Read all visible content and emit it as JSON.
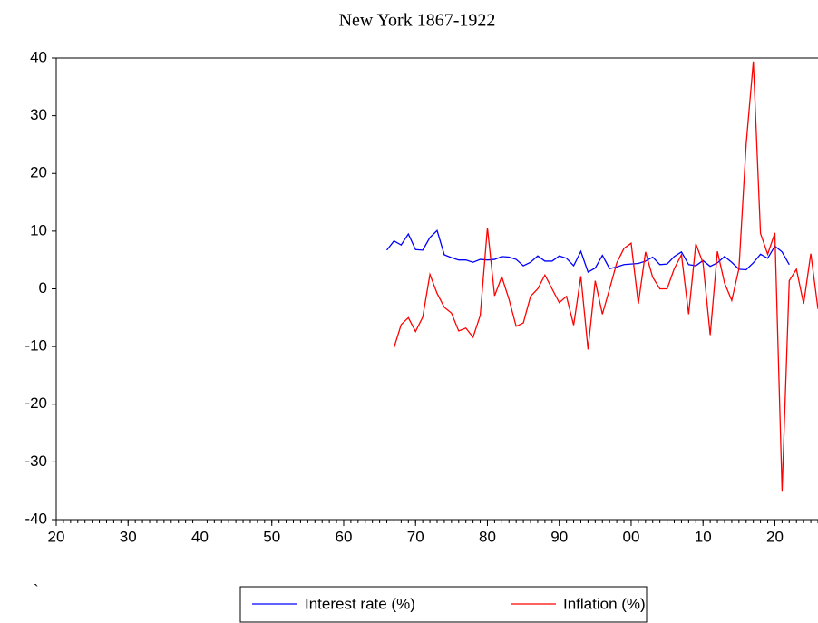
{
  "chart_data": {
    "type": "line",
    "title": "New York 1867-1922",
    "annotation": "`",
    "xlim": [
      1820,
      1926
    ],
    "ylim": [
      -40,
      40
    ],
    "xticks": [
      {
        "value": 1820,
        "label": "20"
      },
      {
        "value": 1830,
        "label": "30"
      },
      {
        "value": 1840,
        "label": "40"
      },
      {
        "value": 1850,
        "label": "50"
      },
      {
        "value": 1860,
        "label": "60"
      },
      {
        "value": 1870,
        "label": "70"
      },
      {
        "value": 1880,
        "label": "80"
      },
      {
        "value": 1890,
        "label": "90"
      },
      {
        "value": 1900,
        "label": "00"
      },
      {
        "value": 1910,
        "label": "10"
      },
      {
        "value": 1920,
        "label": "20"
      }
    ],
    "yticks": [
      -40,
      -30,
      -20,
      -10,
      0,
      10,
      20,
      30,
      40
    ],
    "series": [
      {
        "name": "Interest rate (%)",
        "color": "#0000ff",
        "x": [
          1866,
          1867,
          1868,
          1869,
          1870,
          1871,
          1872,
          1873,
          1874,
          1875,
          1876,
          1877,
          1878,
          1879,
          1880,
          1881,
          1882,
          1883,
          1884,
          1885,
          1886,
          1887,
          1888,
          1889,
          1890,
          1891,
          1892,
          1893,
          1894,
          1895,
          1896,
          1897,
          1898,
          1899,
          1900,
          1901,
          1902,
          1903,
          1904,
          1905,
          1906,
          1907,
          1908,
          1909,
          1910,
          1911,
          1912,
          1913,
          1914,
          1915,
          1916,
          1917,
          1918,
          1919,
          1920,
          1921,
          1922
        ],
        "values": [
          6.7,
          8.3,
          7.6,
          9.5,
          6.8,
          6.7,
          8.9,
          10.1,
          5.9,
          5.4,
          5.0,
          5.0,
          4.6,
          5.1,
          5.0,
          5.1,
          5.6,
          5.5,
          5.1,
          4.0,
          4.6,
          5.7,
          4.8,
          4.8,
          5.7,
          5.3,
          4.0,
          6.5,
          2.9,
          3.6,
          5.8,
          3.5,
          3.8,
          4.2,
          4.3,
          4.4,
          4.8,
          5.5,
          4.2,
          4.3,
          5.6,
          6.4,
          4.2,
          4.0,
          4.9,
          3.9,
          4.5,
          5.6,
          4.6,
          3.4,
          3.3,
          4.5,
          6.0,
          5.3,
          7.4,
          6.4,
          4.2
        ]
      },
      {
        "name": "Inflation (%)",
        "color": "#ff0000",
        "x": [
          1867,
          1868,
          1869,
          1870,
          1871,
          1872,
          1873,
          1874,
          1875,
          1876,
          1877,
          1878,
          1879,
          1880,
          1881,
          1882,
          1883,
          1884,
          1885,
          1886,
          1887,
          1888,
          1889,
          1890,
          1891,
          1892,
          1893,
          1894,
          1895,
          1896,
          1897,
          1898,
          1899,
          1900,
          1901,
          1902,
          1903,
          1904,
          1905,
          1906,
          1907,
          1908,
          1909,
          1910,
          1911,
          1912,
          1913,
          1914,
          1915,
          1916,
          1917,
          1918,
          1919,
          1920,
          1921,
          1922,
          1923,
          1924,
          1925,
          1926
        ],
        "values": [
          -10.2,
          -6.2,
          -5.0,
          -7.4,
          -4.9,
          2.5,
          -0.8,
          -3.2,
          -4.2,
          -7.3,
          -6.8,
          -8.4,
          -4.6,
          10.6,
          -1.2,
          2.1,
          -1.8,
          -6.5,
          -5.9,
          -1.3,
          0.0,
          2.4,
          0.0,
          -2.4,
          -1.3,
          -6.3,
          2.2,
          -10.5,
          1.4,
          -4.4,
          0.0,
          4.5,
          7.0,
          7.9,
          -2.6,
          6.4,
          2.0,
          0.0,
          0.0,
          3.5,
          5.9,
          -4.4,
          7.8,
          4.5,
          -8.0,
          6.5,
          1.0,
          -2.0,
          3.5,
          25.0,
          39.4,
          9.6,
          6.0,
          9.7,
          -35.0,
          1.4,
          3.4,
          -2.6,
          6.1,
          -3.5
        ]
      }
    ]
  }
}
